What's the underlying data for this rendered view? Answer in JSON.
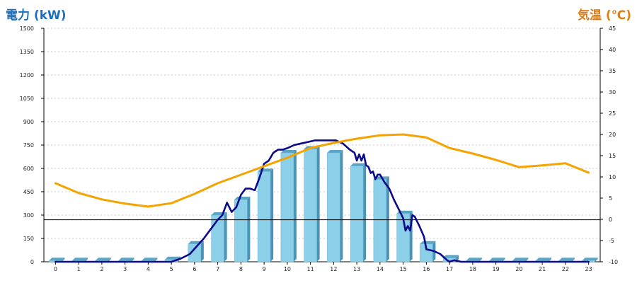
{
  "chart_data": {
    "type": "bar",
    "left_axis_title": "電力 (kW)",
    "right_axis_title": "気温 (℃)",
    "categories": [
      "0",
      "1",
      "2",
      "3",
      "4",
      "5",
      "6",
      "7",
      "8",
      "9",
      "10",
      "11",
      "12",
      "13",
      "14",
      "15",
      "16",
      "17",
      "18",
      "19",
      "20",
      "21",
      "22",
      "23"
    ],
    "y_left": {
      "min": 0,
      "max": 1500,
      "ticks": [
        0,
        150,
        300,
        450,
        600,
        750,
        900,
        1050,
        1200,
        1350,
        1500
      ]
    },
    "y_right": {
      "min": -10,
      "max": 45,
      "ticks": [
        -10,
        -5,
        0,
        5,
        10,
        15,
        20,
        25,
        30,
        35,
        40,
        45
      ]
    },
    "grid": true,
    "reference_line_left_value": 270,
    "series": [
      {
        "kind": "bar",
        "axis": "left",
        "color": "#8ccfe8",
        "values": [
          8,
          8,
          8,
          8,
          8,
          15,
          115,
          300,
          400,
          580,
          700,
          725,
          700,
          615,
          530,
          310,
          115,
          25,
          8,
          8,
          8,
          8,
          8,
          8
        ]
      },
      {
        "kind": "line",
        "axis": "left",
        "color": "#0a0a8a",
        "x": [
          0,
          1,
          2,
          3,
          4,
          5,
          5.4,
          5.8,
          6.1,
          6.4,
          6.7,
          7.0,
          7.2,
          7.4,
          7.6,
          7.8,
          8.0,
          8.2,
          8.4,
          8.6,
          8.8,
          9.0,
          9.2,
          9.4,
          9.6,
          9.8,
          10.0,
          10.3,
          10.6,
          10.9,
          11.2,
          11.5,
          11.8,
          12.1,
          12.4,
          12.7,
          12.9,
          13.0,
          13.1,
          13.2,
          13.3,
          13.4,
          13.5,
          13.6,
          13.7,
          13.8,
          13.9,
          14.0,
          14.2,
          14.4,
          14.6,
          14.8,
          15.0,
          15.1,
          15.2,
          15.3,
          15.4,
          15.5,
          15.7,
          15.9,
          16.0,
          16.3,
          16.6,
          16.9,
          17.0,
          17.2,
          17.5,
          18,
          19,
          20,
          21,
          22,
          23
        ],
        "values": [
          0,
          0,
          0,
          0,
          0,
          0,
          20,
          50,
          100,
          150,
          210,
          270,
          300,
          380,
          320,
          350,
          430,
          470,
          470,
          460,
          540,
          630,
          650,
          700,
          720,
          720,
          730,
          750,
          760,
          770,
          780,
          780,
          780,
          780,
          760,
          720,
          700,
          650,
          690,
          650,
          690,
          620,
          610,
          570,
          580,
          530,
          560,
          560,
          510,
          470,
          400,
          340,
          280,
          200,
          230,
          200,
          300,
          290,
          230,
          160,
          80,
          70,
          50,
          10,
          0,
          10,
          0,
          0,
          0,
          0,
          0,
          0,
          0
        ]
      },
      {
        "kind": "line",
        "axis": "right",
        "color": "#f5a300",
        "x": [
          0,
          1,
          2,
          3,
          4,
          5,
          6,
          7,
          8,
          9,
          10,
          11,
          12,
          13,
          14,
          15,
          16,
          17,
          18,
          19,
          20,
          21,
          22,
          23
        ],
        "values": [
          8.5,
          6.2,
          4.7,
          3.7,
          3.0,
          3.8,
          6.0,
          8.5,
          10.5,
          12.5,
          14.5,
          16.8,
          18.0,
          19.0,
          19.8,
          20.0,
          19.3,
          16.8,
          15.5,
          14.0,
          12.3,
          12.7,
          13.2,
          11.0
        ]
      }
    ]
  }
}
